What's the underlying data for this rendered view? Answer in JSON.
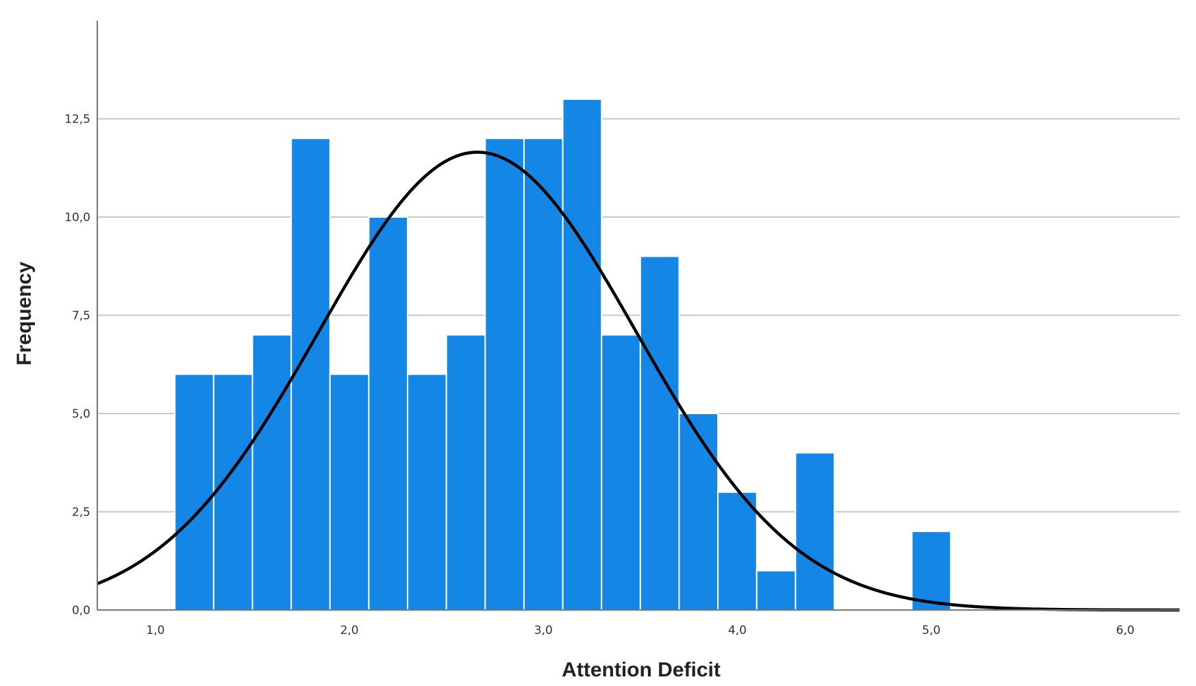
{
  "chart_data": {
    "type": "bar",
    "xlabel": "Attention Deficit",
    "ylabel": "Frequency",
    "xlim": [
      0.7,
      6.28
    ],
    "ylim": [
      0,
      15
    ],
    "x_ticks": [
      1.0,
      2.0,
      3.0,
      4.0,
      5.0,
      6.0
    ],
    "x_tick_labels": [
      "1,0",
      "2,0",
      "3,0",
      "4,0",
      "5,0",
      "6,0"
    ],
    "y_ticks": [
      0,
      2.5,
      5,
      7.5,
      10,
      12.5
    ],
    "y_tick_labels": [
      "0,0",
      "2,5",
      "5,0",
      "7,5",
      "10,0",
      "12,5"
    ],
    "grid": true,
    "bar_color": "#1487e6",
    "series": [
      {
        "type": "histogram",
        "bins": [
          {
            "start": 1.1,
            "end": 1.3,
            "count": 6
          },
          {
            "start": 1.3,
            "end": 1.5,
            "count": 6
          },
          {
            "start": 1.5,
            "end": 1.7,
            "count": 7
          },
          {
            "start": 1.7,
            "end": 1.9,
            "count": 12
          },
          {
            "start": 1.9,
            "end": 2.1,
            "count": 6
          },
          {
            "start": 2.1,
            "end": 2.3,
            "count": 10
          },
          {
            "start": 2.3,
            "end": 2.5,
            "count": 6
          },
          {
            "start": 2.5,
            "end": 2.7,
            "count": 7
          },
          {
            "start": 2.7,
            "end": 2.9,
            "count": 12
          },
          {
            "start": 2.9,
            "end": 3.1,
            "count": 12
          },
          {
            "start": 3.1,
            "end": 3.3,
            "count": 13
          },
          {
            "start": 3.3,
            "end": 3.5,
            "count": 7
          },
          {
            "start": 3.5,
            "end": 3.7,
            "count": 9
          },
          {
            "start": 3.7,
            "end": 3.9,
            "count": 5
          },
          {
            "start": 3.9,
            "end": 4.1,
            "count": 3
          },
          {
            "start": 4.1,
            "end": 4.3,
            "count": 1
          },
          {
            "start": 4.3,
            "end": 4.5,
            "count": 4
          },
          {
            "start": 4.9,
            "end": 5.1,
            "count": 2
          }
        ]
      },
      {
        "type": "normal-curve",
        "mean": 2.66,
        "sd": 0.82,
        "peak": 11.65,
        "color": "#000000"
      }
    ]
  }
}
